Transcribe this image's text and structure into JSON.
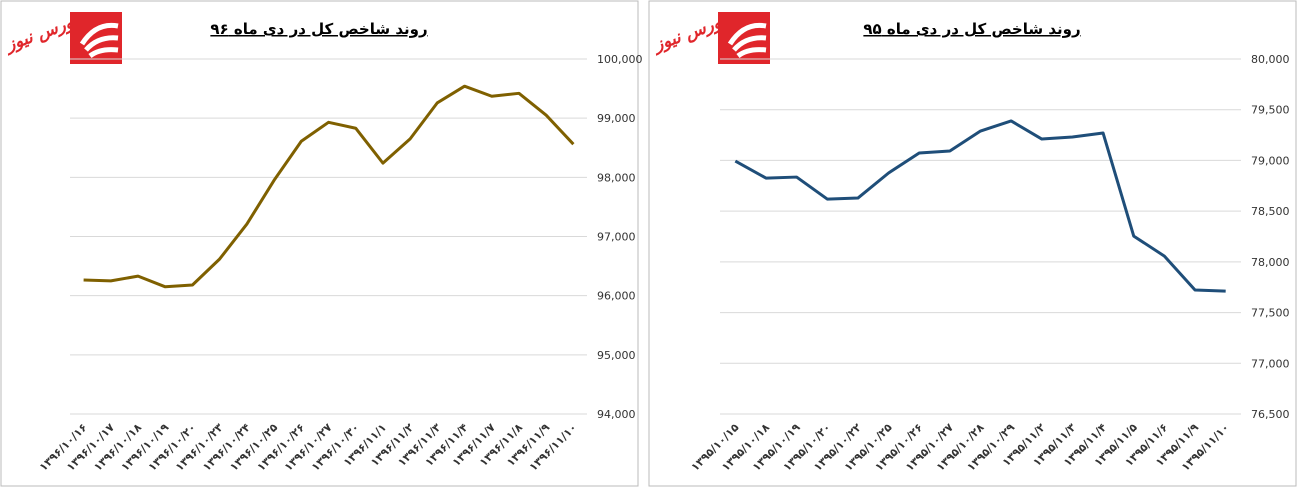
{
  "logo": {
    "text": "بورس نیوز"
  },
  "chart_data": [
    {
      "type": "line",
      "title": "روند شاخص کل در دی ماه ۹۶",
      "color": "#7f6000",
      "grid": true,
      "categories": [
        "۱۳۹۶/۱۰/۱۶",
        "۱۳۹۶/۱۰/۱۷",
        "۱۳۹۶/۱۰/۱۸",
        "۱۳۹۶/۱۰/۱۹",
        "۱۳۹۶/۱۰/۲۰",
        "۱۳۹۶/۱۰/۲۳",
        "۱۳۹۶/۱۰/۲۴",
        "۱۳۹۶/۱۰/۲۵",
        "۱۳۹۶/۱۰/۲۶",
        "۱۳۹۶/۱۰/۲۷",
        "۱۳۹۶/۱۰/۳۰",
        "۱۳۹۶/۱۱/۱",
        "۱۳۹۶/۱۱/۲",
        "۱۳۹۶/۱۱/۳",
        "۱۳۹۶/۱۱/۴",
        "۱۳۹۶/۱۱/۷",
        "۱۳۹۶/۱۱/۸",
        "۱۳۹۶/۱۱/۹",
        "۱۳۹۶/۱۱/۱۰"
      ],
      "values": [
        96265,
        96250,
        96330,
        96150,
        96180,
        96620,
        97210,
        97950,
        98610,
        98930,
        98830,
        98240,
        98650,
        99260,
        99540,
        99370,
        99420,
        99050,
        98560
      ],
      "ylim": [
        94000,
        100000
      ],
      "yticks": [
        {
          "value": 94000,
          "label": "94,000"
        },
        {
          "value": 95000,
          "label": "95,000"
        },
        {
          "value": 96000,
          "label": "96,000"
        },
        {
          "value": 97000,
          "label": "97,000"
        },
        {
          "value": 98000,
          "label": "98,000"
        },
        {
          "value": 99000,
          "label": "99,000"
        },
        {
          "value": 100000,
          "label": "100,000"
        }
      ]
    },
    {
      "type": "line",
      "title": "روند شاخص کل در دی ماه ۹۵",
      "color": "#1f4e79",
      "grid": true,
      "categories": [
        "۱۳۹۵/۱۰/۱۵",
        "۱۳۹۵/۱۰/۱۸",
        "۱۳۹۵/۱۰/۱۹",
        "۱۳۹۵/۱۰/۲۰",
        "۱۳۹۵/۱۰/۲۲",
        "۱۳۹۵/۱۰/۲۵",
        "۱۳۹۵/۱۰/۲۶",
        "۱۳۹۵/۱۰/۲۷",
        "۱۳۹۵/۱۰/۲۸",
        "۱۳۹۵/۱۰/۲۹",
        "۱۳۹۵/۱۱/۲",
        "۱۳۹۵/۱۱/۳",
        "۱۳۹۵/۱۱/۴",
        "۱۳۹۵/۱۱/۵",
        "۱۳۹۵/۱۱/۶",
        "۱۳۹۵/۱۱/۹",
        "۱۳۹۵/۱۱/۱۰"
      ],
      "values": [
        78994,
        78826,
        78836,
        78619,
        78629,
        78876,
        79073,
        79093,
        79290,
        79389,
        79211,
        79231,
        79270,
        78254,
        78057,
        77722,
        77712
      ],
      "ylim": [
        76500,
        80000
      ],
      "yticks": [
        {
          "value": 76500,
          "label": "76,500"
        },
        {
          "value": 77000,
          "label": "77,000"
        },
        {
          "value": 77500,
          "label": "77,500"
        },
        {
          "value": 78000,
          "label": "78,000"
        },
        {
          "value": 78500,
          "label": "78,500"
        },
        {
          "value": 79000,
          "label": "79,000"
        },
        {
          "value": 79500,
          "label": "79,500"
        },
        {
          "value": 80000,
          "label": "80,000"
        }
      ]
    }
  ]
}
